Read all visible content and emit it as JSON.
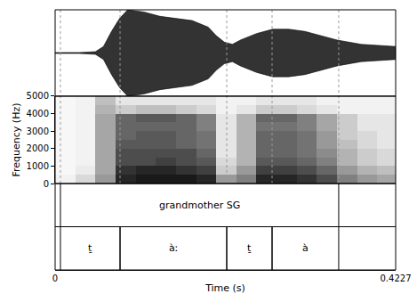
{
  "chart_data": {
    "type": "spectrogram",
    "xlabel": "Time (s)",
    "ylabel": "Frequency (Hz)",
    "xlim": [
      0,
      0.4227
    ],
    "xticks": [
      0,
      0.4227
    ],
    "ylim": [
      0,
      5000
    ],
    "yticks": [
      0,
      1000,
      2000,
      3000,
      4000,
      5000
    ],
    "color": "#000000",
    "waveform": {
      "ylim": [
        -1,
        1
      ],
      "x": [
        0,
        0.03,
        0.05,
        0.06,
        0.07,
        0.08,
        0.09,
        0.11,
        0.13,
        0.15,
        0.17,
        0.19,
        0.2,
        0.21,
        0.22,
        0.23,
        0.25,
        0.27,
        0.29,
        0.31,
        0.33,
        0.35,
        0.38,
        0.4,
        0.4227
      ],
      "values": [
        0.01,
        0.01,
        0.03,
        0.15,
        0.5,
        0.8,
        1.0,
        0.95,
        0.85,
        0.8,
        0.75,
        0.6,
        0.4,
        0.25,
        0.2,
        0.3,
        0.45,
        0.55,
        0.55,
        0.5,
        0.4,
        0.3,
        0.2,
        0.18,
        0.15
      ]
    },
    "spectrogram": {
      "zlim": [
        0,
        1
      ],
      "x": [
        0.0125,
        0.0375,
        0.0625,
        0.0875,
        0.1125,
        0.1375,
        0.1625,
        0.1875,
        0.2125,
        0.2375,
        0.2625,
        0.2875,
        0.3125,
        0.3375,
        0.3625,
        0.3875,
        0.4125
      ],
      "y": [
        250,
        750,
        1250,
        1750,
        2250,
        2750,
        3250,
        3750,
        4250,
        4750
      ],
      "z": [
        [
          0.05,
          0.15,
          0.4,
          0.85,
          0.9,
          0.9,
          0.9,
          0.85,
          0.4,
          0.5,
          0.85,
          0.85,
          0.8,
          0.7,
          0.5,
          0.4,
          0.35
        ],
        [
          0.03,
          0.08,
          0.35,
          0.8,
          0.85,
          0.85,
          0.8,
          0.75,
          0.2,
          0.4,
          0.75,
          0.75,
          0.7,
          0.6,
          0.4,
          0.3,
          0.25
        ],
        [
          0.03,
          0.05,
          0.35,
          0.7,
          0.7,
          0.75,
          0.7,
          0.65,
          0.15,
          0.3,
          0.65,
          0.65,
          0.6,
          0.5,
          0.3,
          0.2,
          0.15
        ],
        [
          0.03,
          0.05,
          0.35,
          0.7,
          0.7,
          0.7,
          0.7,
          0.6,
          0.1,
          0.3,
          0.6,
          0.6,
          0.55,
          0.45,
          0.3,
          0.2,
          0.15
        ],
        [
          0.03,
          0.05,
          0.35,
          0.65,
          0.65,
          0.65,
          0.6,
          0.55,
          0.1,
          0.3,
          0.6,
          0.6,
          0.55,
          0.4,
          0.25,
          0.15,
          0.1
        ],
        [
          0.03,
          0.05,
          0.35,
          0.6,
          0.65,
          0.65,
          0.6,
          0.55,
          0.1,
          0.3,
          0.6,
          0.6,
          0.55,
          0.4,
          0.2,
          0.15,
          0.1
        ],
        [
          0.03,
          0.05,
          0.35,
          0.6,
          0.6,
          0.6,
          0.6,
          0.5,
          0.1,
          0.3,
          0.55,
          0.55,
          0.5,
          0.35,
          0.2,
          0.1,
          0.1
        ],
        [
          0.03,
          0.05,
          0.35,
          0.6,
          0.65,
          0.65,
          0.6,
          0.5,
          0.1,
          0.3,
          0.6,
          0.6,
          0.5,
          0.35,
          0.2,
          0.1,
          0.1
        ],
        [
          0.03,
          0.05,
          0.3,
          0.2,
          0.25,
          0.25,
          0.2,
          0.15,
          0.05,
          0.1,
          0.2,
          0.2,
          0.15,
          0.1,
          0.05,
          0.05,
          0.05
        ],
        [
          0.03,
          0.05,
          0.25,
          0.1,
          0.1,
          0.1,
          0.1,
          0.1,
          0.05,
          0.05,
          0.1,
          0.1,
          0.1,
          0.05,
          0.05,
          0.05,
          0.05
        ]
      ]
    },
    "tiers": [
      {
        "intervals": [
          {
            "start": 0.0066,
            "end": 0.352,
            "label": "grandmother SG"
          }
        ]
      },
      {
        "intervals": [
          {
            "start": 0.0066,
            "end": 0.0806,
            "label": "ṯ"
          },
          {
            "start": 0.0806,
            "end": 0.213,
            "label": "àː"
          },
          {
            "start": 0.213,
            "end": 0.2693,
            "label": "ṯ"
          },
          {
            "start": 0.2693,
            "end": 0.352,
            "label": "à"
          }
        ]
      }
    ]
  }
}
